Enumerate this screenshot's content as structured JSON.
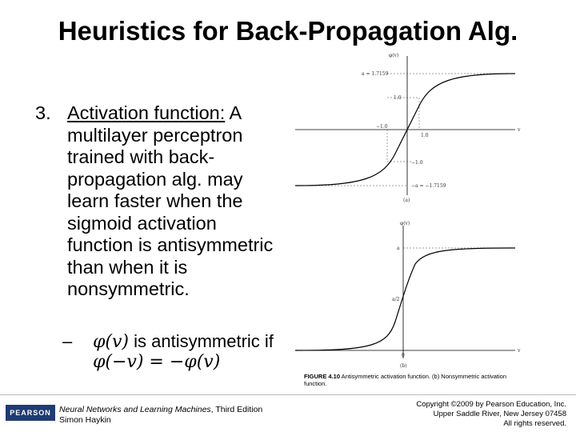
{
  "title": "Heuristics for Back-Propagation Alg.",
  "item": {
    "number": "3.",
    "heading": "Activation function:",
    "text": " A multilayer perceptron trained with back-propagation alg. may learn faster when the sigmoid activation function is antisymmetric than when it is nonsymmetric."
  },
  "subitem": {
    "dash": "–",
    "line1_math": "φ(v)",
    "line1_text": " is antisymmetric if",
    "line2_math": "φ(−v) = −φ(v)"
  },
  "figure": {
    "plot_a": {
      "ylabel": "φ(v)",
      "a_label": "a = 1.7159",
      "one_label": "1.0",
      "neg_one_label": "−1.0",
      "x_one_label": "1.0",
      "x_label": "v",
      "neg_one_y_label": "−1.0",
      "neg_a_label": "−a = −1.7159",
      "panel": "(a)"
    },
    "plot_b": {
      "ylabel": "φ(v)",
      "a_label": "a",
      "half_label": "a/2",
      "zero_label": "0",
      "x_label": "v",
      "panel": "(b)"
    },
    "caption_bold": "FIGURE 4.10",
    "caption_text": "  Antisymmetric activation function. (b) Nonsymmetric activation function."
  },
  "footer": {
    "logo": "PEARSON",
    "book_italic": "Neural Networks and Learning Machines",
    "book_edition": ", Third Edition",
    "author": "Simon Haykin",
    "copyright1": "Copyright ©2009 by Pearson Education, Inc.",
    "copyright2": "Upper Saddle River, New Jersey 07458",
    "copyright3": "All rights reserved."
  }
}
